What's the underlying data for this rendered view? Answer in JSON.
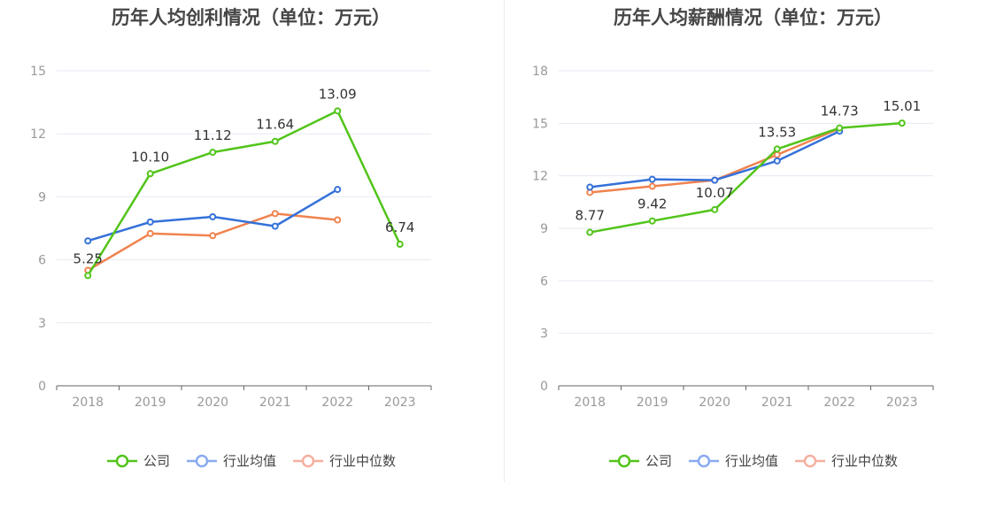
{
  "chart_data": [
    {
      "type": "line",
      "title": "历年人均创利情况（单位：万元）",
      "categories": [
        "2018",
        "2019",
        "2020",
        "2021",
        "2022",
        "2023"
      ],
      "ylim": [
        0,
        15
      ],
      "yticks": [
        0,
        3,
        6,
        9,
        12,
        15
      ],
      "grid": true,
      "legend_position": "bottom",
      "series": [
        {
          "name": "公司",
          "color": "#52c41a",
          "values": [
            5.25,
            10.1,
            11.12,
            11.64,
            13.09,
            6.74
          ],
          "labels": [
            "5.25",
            "10.10",
            "11.12",
            "11.64",
            "13.09",
            "6.74"
          ]
        },
        {
          "name": "行业均值",
          "color": "#3471d9",
          "values": [
            6.9,
            7.8,
            8.05,
            7.6,
            9.35,
            null
          ]
        },
        {
          "name": "行业中位数",
          "color": "#f0834f",
          "values": [
            5.5,
            7.25,
            7.15,
            8.2,
            7.9,
            null
          ]
        }
      ]
    },
    {
      "type": "line",
      "title": "历年人均薪酬情况（单位：万元）",
      "categories": [
        "2018",
        "2019",
        "2020",
        "2021",
        "2022",
        "2023"
      ],
      "ylim": [
        0,
        18
      ],
      "yticks": [
        0,
        3,
        6,
        9,
        12,
        15,
        18
      ],
      "grid": true,
      "legend_position": "bottom",
      "series": [
        {
          "name": "公司",
          "color": "#52c41a",
          "values": [
            8.77,
            9.42,
            10.07,
            13.53,
            14.73,
            15.01
          ],
          "labels": [
            "8.77",
            "9.42",
            "10.07",
            "13.53",
            "14.73",
            "15.01"
          ]
        },
        {
          "name": "行业均值",
          "color": "#3471d9",
          "values": [
            11.35,
            11.8,
            11.75,
            12.85,
            14.55,
            null
          ]
        },
        {
          "name": "行业中位数",
          "color": "#f0834f",
          "values": [
            11.05,
            11.4,
            11.75,
            13.2,
            14.7,
            null
          ]
        }
      ]
    }
  ],
  "legend": [
    {
      "name": "公司",
      "color": "#52c41a",
      "muted_color": "#52c41a"
    },
    {
      "name": "行业均值",
      "color": "#3471d9",
      "muted_color": "#8aaaf0"
    },
    {
      "name": "行业中位数",
      "color": "#f0834f",
      "muted_color": "#f5b0a0"
    }
  ]
}
